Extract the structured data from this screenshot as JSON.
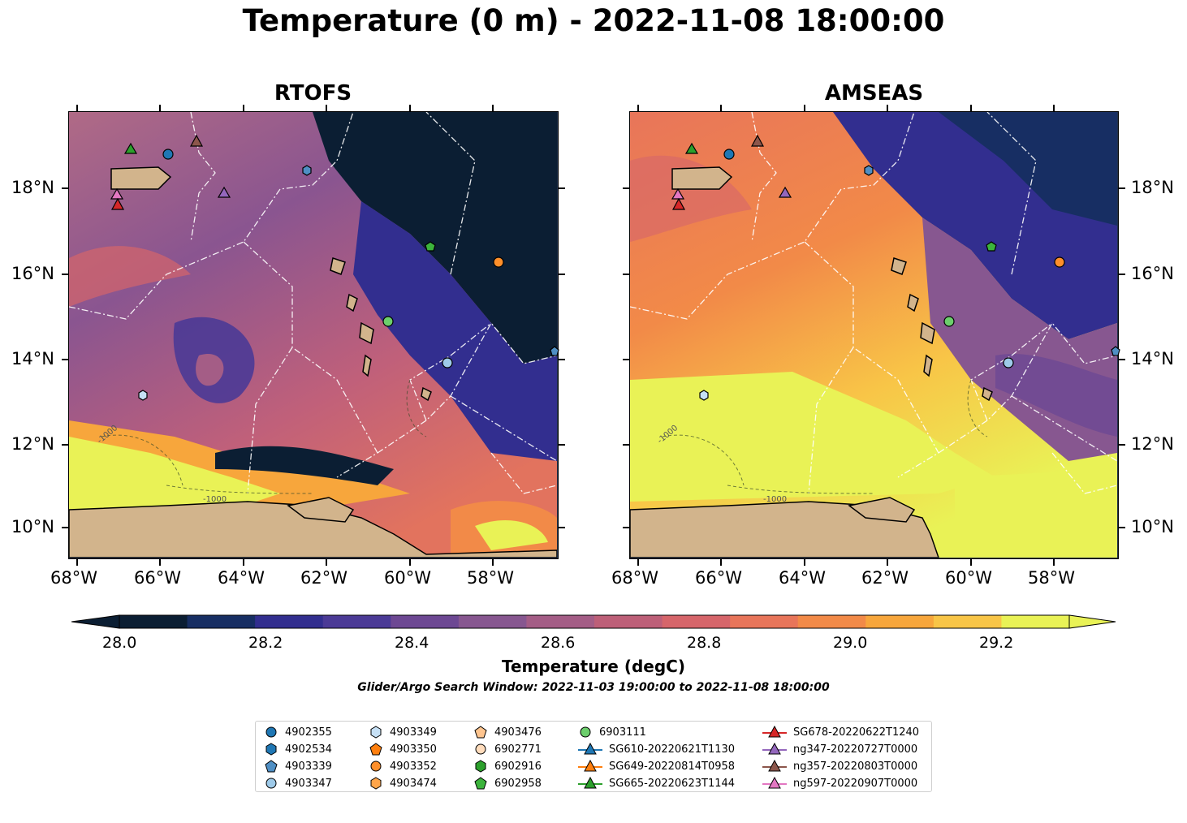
{
  "figure": {
    "title": "Temperature (0 m) - 2022-11-08 18:00:00"
  },
  "panels": [
    {
      "title": "RTOFS"
    },
    {
      "title": "AMSEAS"
    }
  ],
  "axes": {
    "lon_labels": [
      "68°W",
      "66°W",
      "64°W",
      "62°W",
      "60°W",
      "58°W"
    ],
    "lat_labels": [
      "18°N",
      "16°N",
      "14°N",
      "12°N",
      "10°N"
    ],
    "bathymetry_labels": [
      "-1000",
      "-1000",
      "-1000",
      "-1000"
    ]
  },
  "colorbar": {
    "title": "Temperature (degC)",
    "tick_labels": [
      "28.0",
      "28.2",
      "28.4",
      "28.6",
      "28.8",
      "29.0",
      "29.2"
    ],
    "levels": [
      28.0,
      28.1,
      28.2,
      28.3,
      28.4,
      28.5,
      28.6,
      28.7,
      28.8,
      28.9,
      29.0,
      29.1,
      29.2,
      29.3
    ],
    "colors": [
      "#0b1e33",
      "#172e63",
      "#322e8f",
      "#4b3a96",
      "#6d4893",
      "#875790",
      "#a45d86",
      "#bd5f78",
      "#d6656a",
      "#e8755a",
      "#f28a48",
      "#f7a63c",
      "#f8c547",
      "#e9f256"
    ],
    "extend": "both"
  },
  "search_window": "Glider/Argo Search Window: 2022-11-03 19:00:00 to 2022-11-08 18:00:00",
  "legend": {
    "items": [
      {
        "label": "4902355",
        "marker": "circle",
        "color": "#1f77b4"
      },
      {
        "label": "4902534",
        "marker": "hexagon",
        "color": "#1f77b4"
      },
      {
        "label": "4903339",
        "marker": "pentagon",
        "color": "#4f8fc4"
      },
      {
        "label": "4903347",
        "marker": "circle",
        "color": "#9ecae9"
      },
      {
        "label": "4903349",
        "marker": "hexagon",
        "color": "#c6e0f5"
      },
      {
        "label": "4903350",
        "marker": "pentagon",
        "color": "#ff7f0e"
      },
      {
        "label": "4903352",
        "marker": "circle",
        "color": "#ff8f2a"
      },
      {
        "label": "4903474",
        "marker": "hexagon",
        "color": "#ffa54a"
      },
      {
        "label": "4903476",
        "marker": "pentagon",
        "color": "#ffc58f"
      },
      {
        "label": "6902771",
        "marker": "circle",
        "color": "#ffdcbc"
      },
      {
        "label": "6902916",
        "marker": "hexagon",
        "color": "#2ca02c"
      },
      {
        "label": "6902958",
        "marker": "pentagon",
        "color": "#3cb43c"
      },
      {
        "label": "6903111",
        "marker": "circle",
        "color": "#6ccf6c"
      },
      {
        "label": "SG610-20220621T1130",
        "marker": "triangle-line",
        "color": "#1f77b4"
      },
      {
        "label": "SG649-20220814T0958",
        "marker": "triangle-line",
        "color": "#ff7f0e"
      },
      {
        "label": "SG665-20220623T1144",
        "marker": "triangle-line",
        "color": "#2ca02c"
      },
      {
        "label": "SG678-20220622T1240",
        "marker": "triangle-line",
        "color": "#d62728"
      },
      {
        "label": "ng347-20220727T0000",
        "marker": "triangle-line",
        "color": "#9467bd"
      },
      {
        "label": "ng357-20220803T0000",
        "marker": "triangle-line",
        "color": "#8c564b"
      },
      {
        "label": "ng597-20220907T0000",
        "marker": "triangle-line",
        "color": "#e377c2"
      }
    ]
  }
}
